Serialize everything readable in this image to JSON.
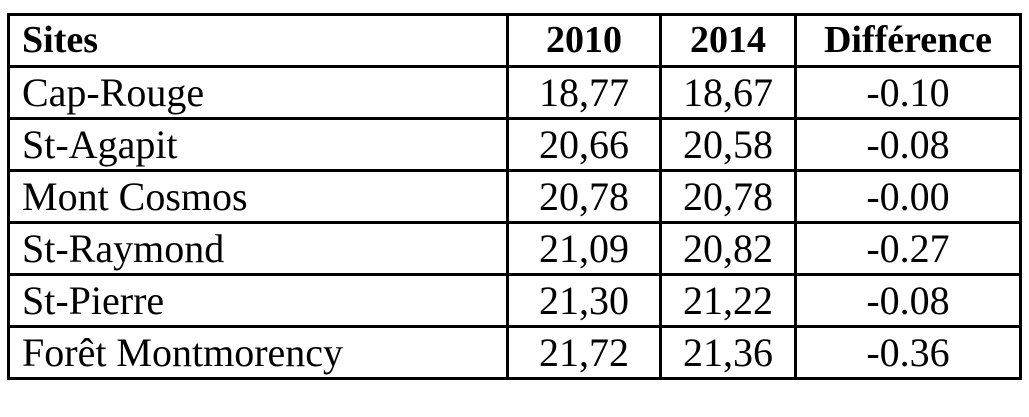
{
  "table": {
    "headers": {
      "site": "Sites",
      "y2010": "2010",
      "y2014": "2014",
      "diff": "Différence"
    },
    "rows": [
      {
        "site": "Cap-Rouge",
        "y2010": "18,77",
        "y2014": "18,67",
        "diff": "-0.10"
      },
      {
        "site": "St-Agapit",
        "y2010": "20,66",
        "y2014": "20,58",
        "diff": "-0.08"
      },
      {
        "site": "Mont Cosmos",
        "y2010": "20,78",
        "y2014": "20,78",
        "diff": "-0.00"
      },
      {
        "site": "St-Raymond",
        "y2010": "21,09",
        "y2014": "20,82",
        "diff": "-0.27"
      },
      {
        "site": "St-Pierre",
        "y2010": "21,30",
        "y2014": "21,22",
        "diff": "-0.08"
      },
      {
        "site": "Forêt Montmorency",
        "y2010": "21,72",
        "y2014": "21,36",
        "diff": "-0.36"
      }
    ]
  }
}
